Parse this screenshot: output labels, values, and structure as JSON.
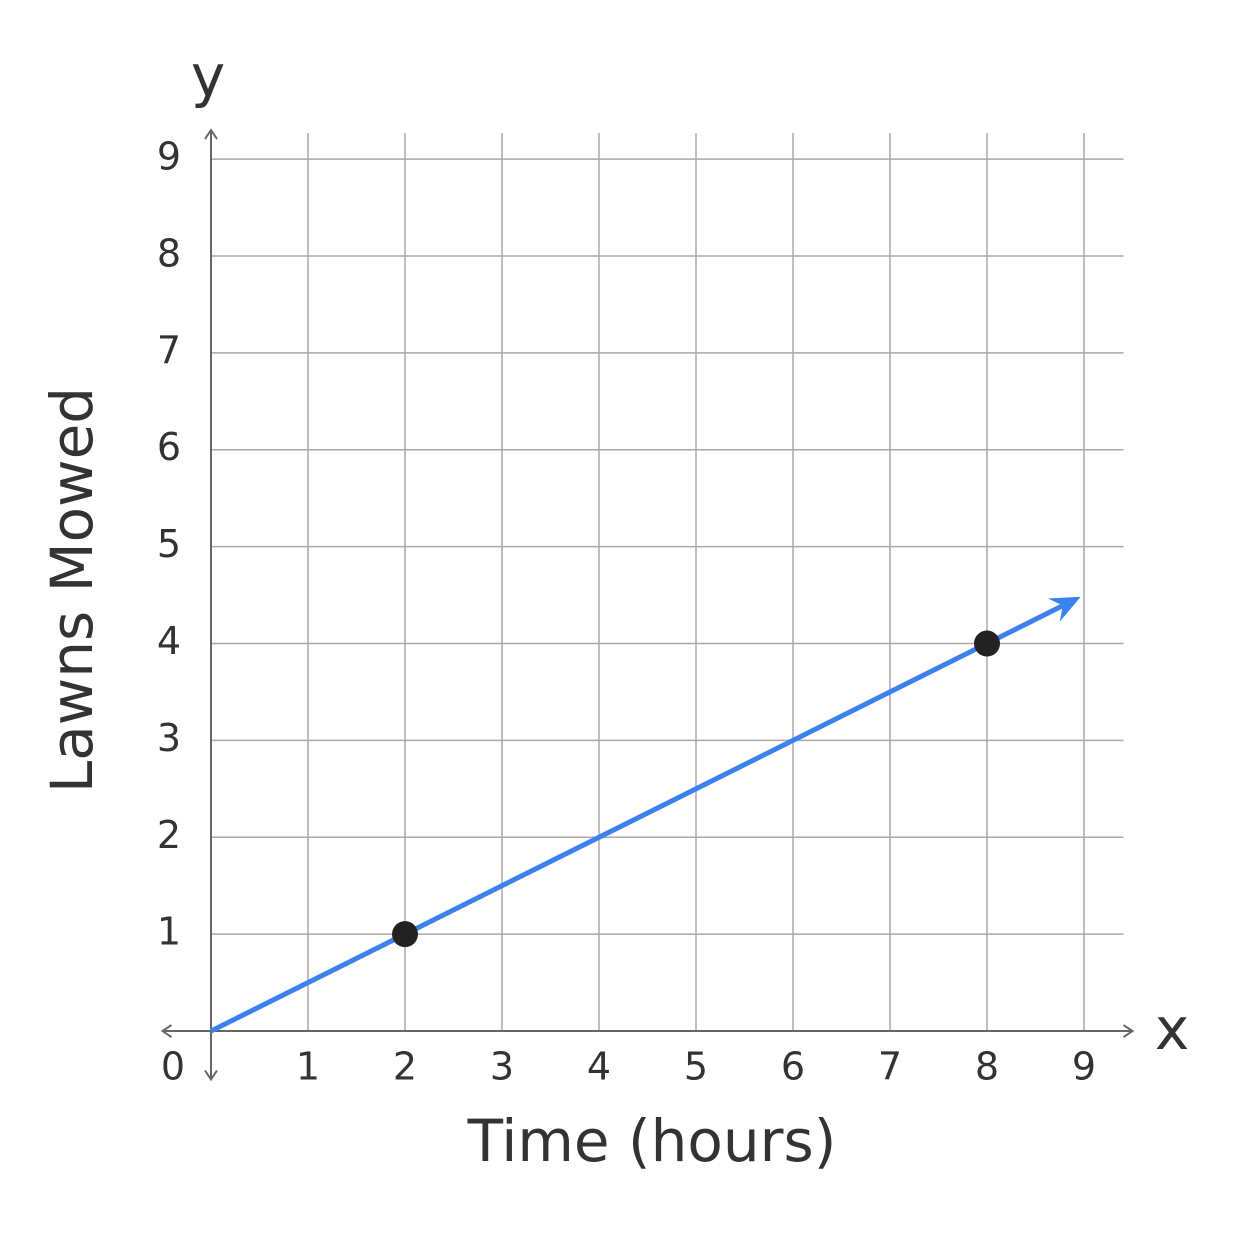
{
  "chart_data": {
    "type": "line",
    "xlabel": "Time (hours)",
    "ylabel": "Lawns Mowed",
    "x_axis_letter": "x",
    "y_axis_letter": "y",
    "xlim": [
      -0.5,
      9.5
    ],
    "ylim": [
      -0.5,
      9.3
    ],
    "xticks": [
      0,
      1,
      2,
      3,
      4,
      5,
      6,
      7,
      8,
      9
    ],
    "yticks": [
      1,
      2,
      3,
      4,
      5,
      6,
      7,
      8,
      9
    ],
    "grid": true,
    "series": [
      {
        "color": "#3b82f0",
        "x": [
          0,
          8.8
        ],
        "values": [
          0,
          4.4
        ],
        "line": true,
        "arrow": true,
        "marker": false
      },
      {
        "color": "#222222",
        "x": [
          2,
          8
        ],
        "values": [
          1,
          4
        ],
        "line": false,
        "arrow": false,
        "marker": true
      }
    ]
  }
}
